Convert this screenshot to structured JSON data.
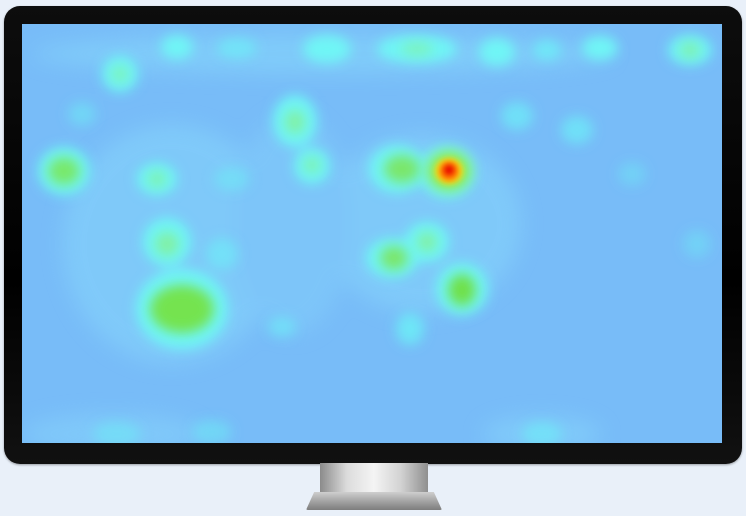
{
  "colors": {
    "page_background": "#e9f0f9",
    "bezel": "#000000",
    "screen_base": "#76bbf7",
    "stand": "#c8c8c8"
  },
  "heatmap": {
    "scale": [
      "#7ec8ff",
      "#6ff6f5",
      "#7ef0a5",
      "#69de3f",
      "#f7e11e",
      "#ff6a00",
      "#e00000"
    ]
  }
}
